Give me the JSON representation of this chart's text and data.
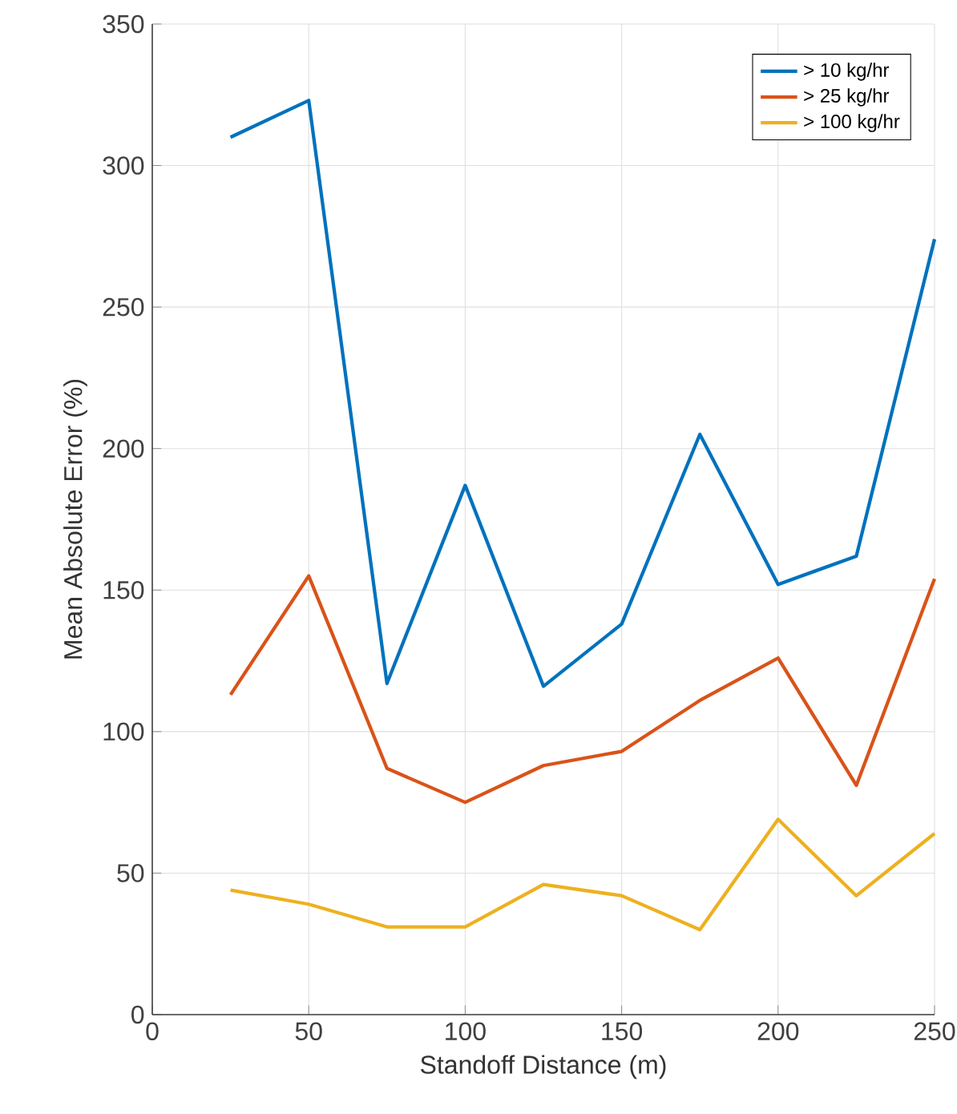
{
  "chart_data": {
    "type": "line",
    "xlabel": "Standoff Distance (m)",
    "ylabel": "Mean Absolute Error (%)",
    "x": [
      25,
      50,
      75,
      100,
      125,
      150,
      175,
      200,
      225,
      250
    ],
    "series": [
      {
        "name": "> 10 kg/hr",
        "color": "#0072bd",
        "values": [
          310,
          323,
          117,
          187,
          116,
          138,
          205,
          152,
          162,
          274
        ]
      },
      {
        "name": "> 25 kg/hr",
        "color": "#d95319",
        "values": [
          113,
          155,
          87,
          75,
          88,
          93,
          111,
          126,
          81,
          154
        ]
      },
      {
        "name": "> 100 kg/hr",
        "color": "#edb120",
        "values": [
          44,
          39,
          31,
          31,
          46,
          42,
          30,
          69,
          42,
          64
        ]
      }
    ],
    "xlim": [
      0,
      250
    ],
    "ylim": [
      0,
      350
    ],
    "xticks": [
      0,
      50,
      100,
      150,
      200,
      250
    ],
    "yticks": [
      0,
      50,
      100,
      150,
      200,
      250,
      300,
      350
    ],
    "grid": true,
    "legend": "top right",
    "line_style": "solid",
    "marker": "none"
  }
}
